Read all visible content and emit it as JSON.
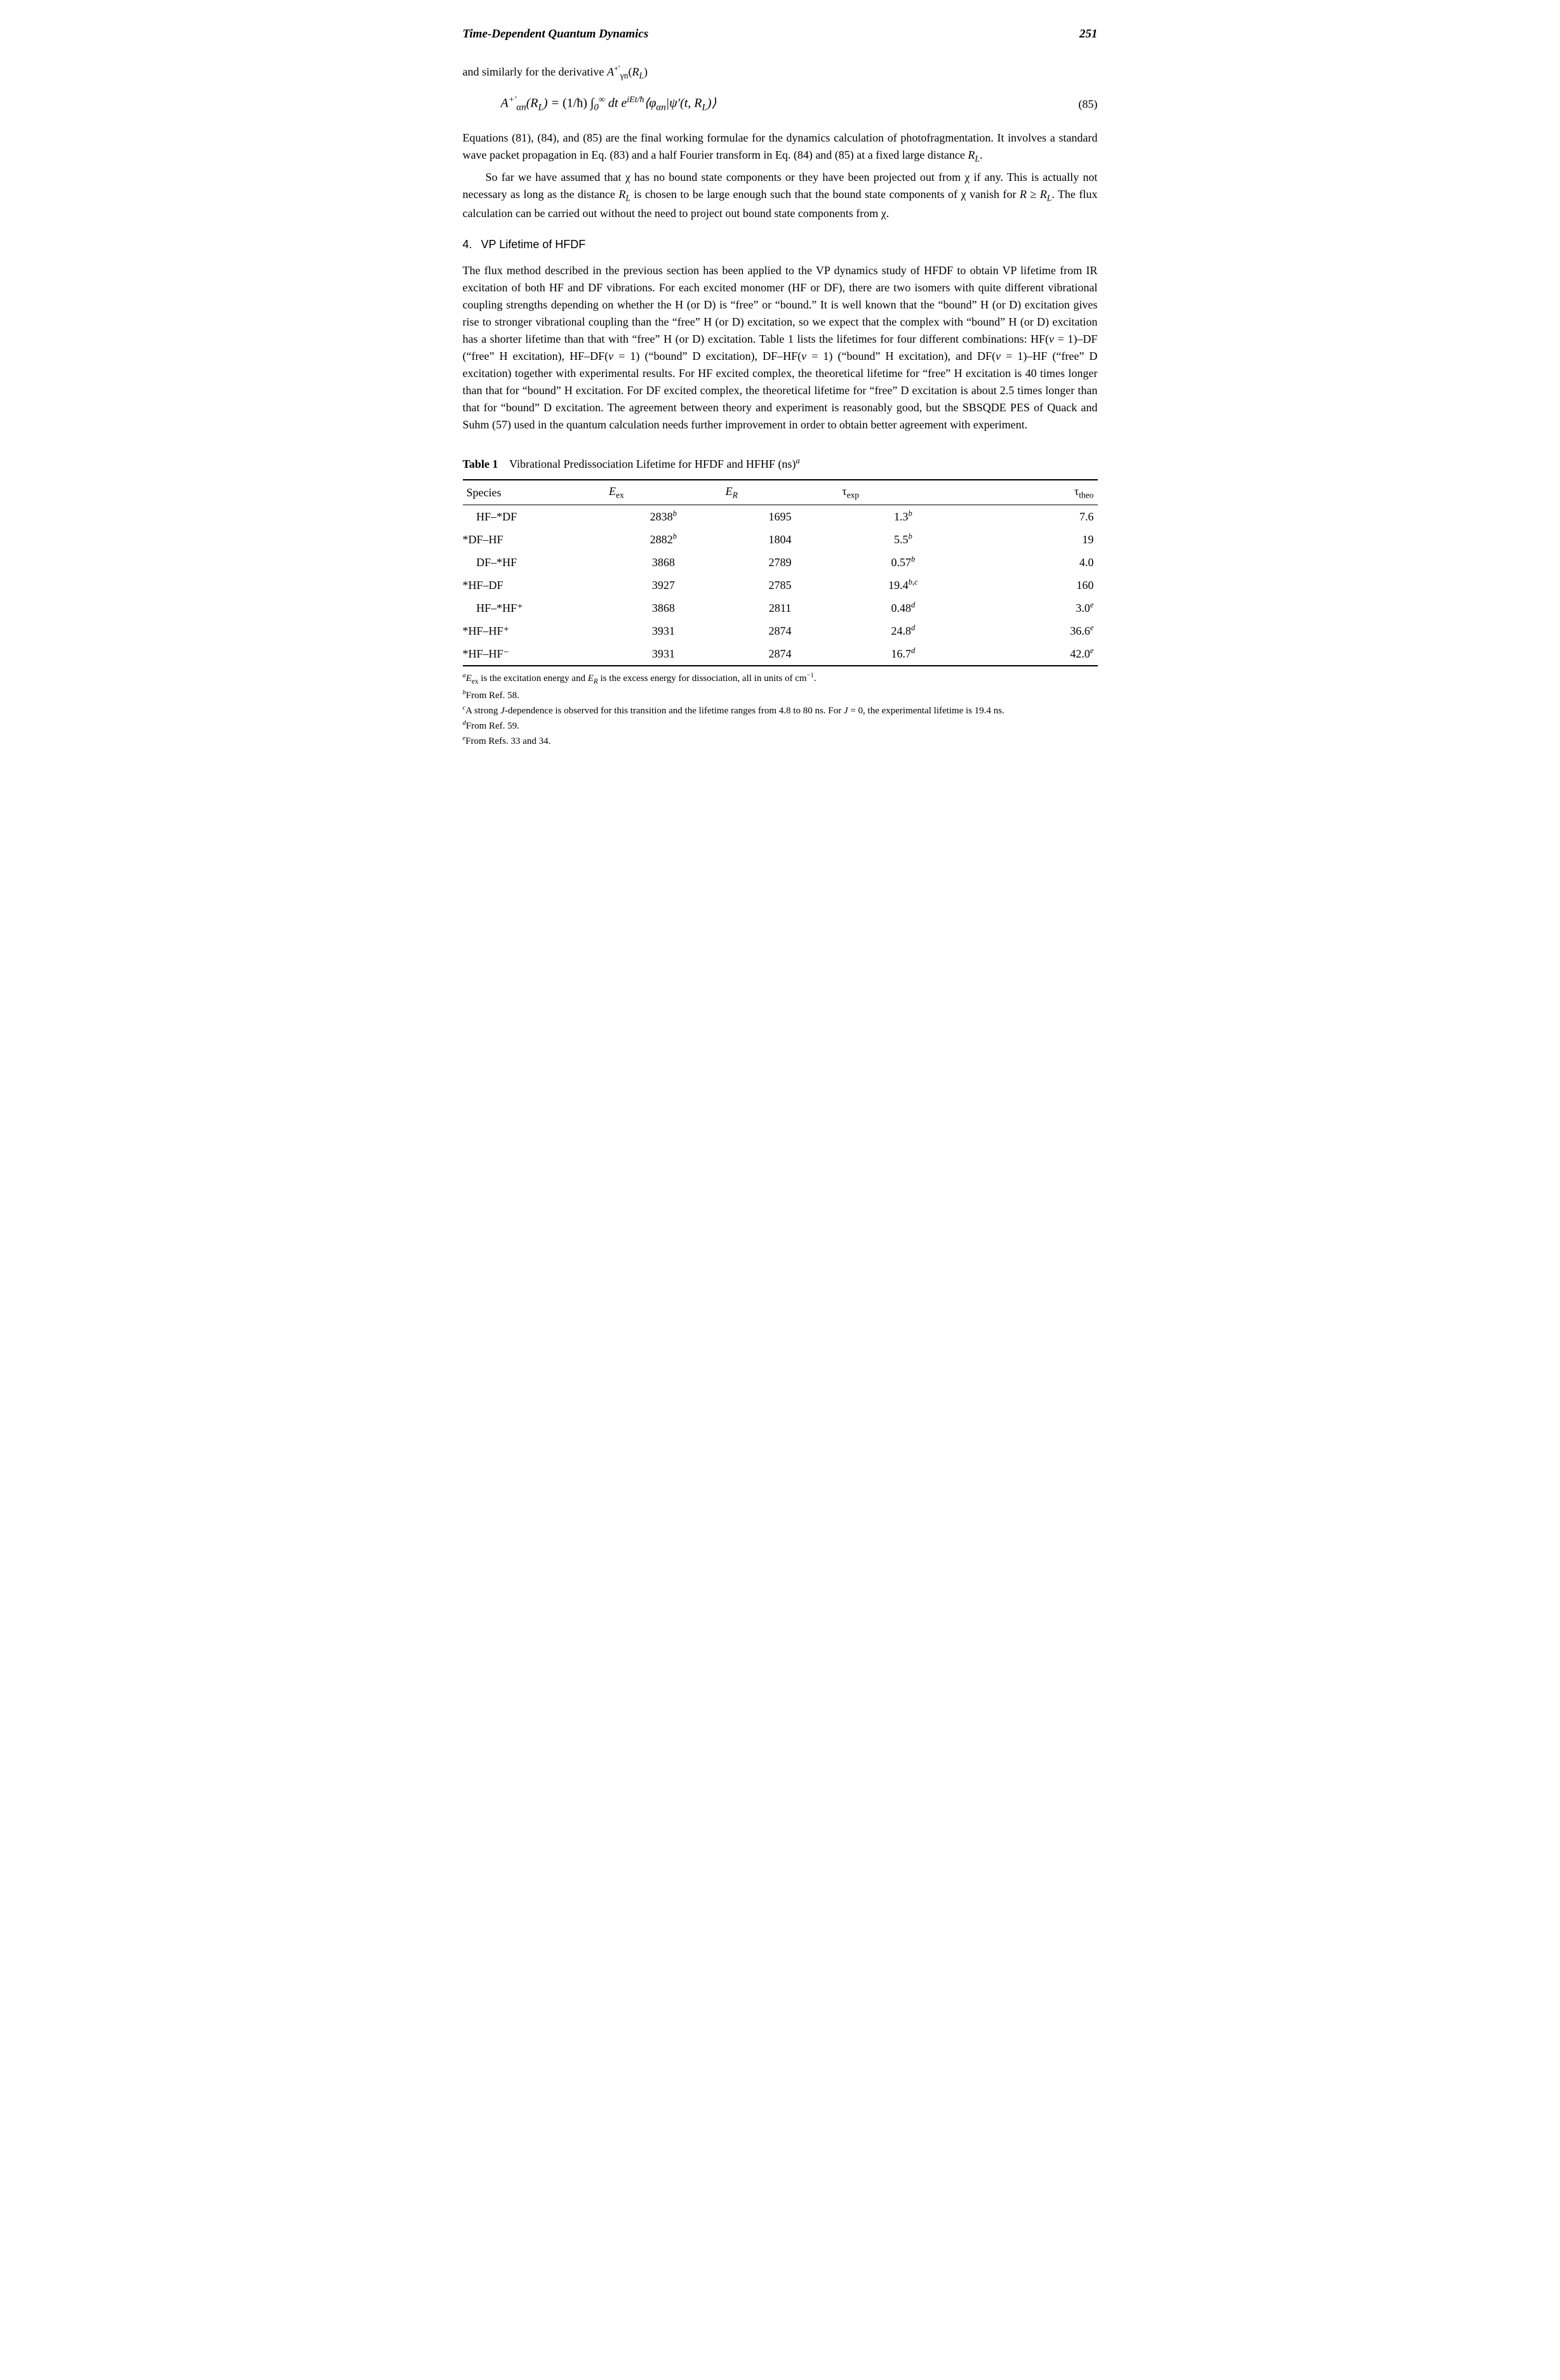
{
  "header": {
    "book_title": "Time-Dependent Quantum Dynamics",
    "page_number": "251"
  },
  "lead_text": "and similarly for the derivative A⁺′γn(R_L)",
  "equation": {
    "body": "A⁺′αn(R_L) = (1/ħ) ∫₀^∞ dt e^{iEt/ħ} ⟨φ_{αn}|ψ′(t, R_L)⟩",
    "number": "(85)"
  },
  "para1": "Equations (81), (84), and (85) are the final working formulae for the dynamics calculation of photofragmentation. It involves a standard wave packet propagation in Eq. (83) and a half Fourier transform in Eq. (84) and (85) at a fixed large distance R_L.",
  "para2": "So far we have assumed that χ has no bound state components or they have been projected out from χ if any. This is actually not necessary as long as the distance R_L is chosen to be large enough such that the bound state components of χ vanish for R ≥ R_L. The flux calculation can be carried out without the need to project out bound state components from χ.",
  "section": {
    "num": "4.",
    "label": "VP Lifetime of HFDF"
  },
  "para3": "The flux method described in the previous section has been applied to the VP dynamics study of HFDF to obtain VP lifetime from IR excitation of both HF and DF vibrations. For each excited monomer (HF or DF), there are two isomers with quite different vibrational coupling strengths depending on whether the H (or D) is “free” or “bound.” It is well known that the “bound” H (or D) excitation gives rise to stronger vibrational coupling than the “free” H (or D) excitation, so we expect that the complex with “bound” H (or D) excitation has a shorter lifetime than that with “free” H (or D) excitation. Table 1 lists the lifetimes for four different combinations: HF(v = 1)–DF (“free” H excitation), HF–DF(v = 1) (“bound” D excitation), DF–HF(v = 1) (“bound” H excitation), and DF(v = 1)–HF (“free” D excitation) together with experimental results. For HF excited complex, the theoretical lifetime for “free” H excitation is 40 times longer than that for “bound” H excitation. For DF excited complex, the theoretical lifetime for “free” D excitation is about 2.5 times longer than that for “bound” D excitation. The agreement between theory and experiment is reasonably good, but the SBSQDE PES of Quack and Suhm (57) used in the quantum calculation needs further improvement in order to obtain better agreement with experiment.",
  "table": {
    "caption_label": "Table 1",
    "caption_text": "Vibrational Predissociation Lifetime for HFDF and HFHF (ns)ᵃ",
    "columns": {
      "species": "Species",
      "eex": "Eₑₓ",
      "er": "E_R",
      "texp": "τₑₓₚ",
      "ttheo": "τₜₕₑₒ"
    },
    "rows": [
      {
        "species": "HF–*DF",
        "species_indent": true,
        "eex": "2838",
        "eex_sup": "b",
        "er": "1695",
        "texp": "1.3",
        "texp_sup": "b",
        "ttheo": "7.6",
        "ttheo_sup": ""
      },
      {
        "species": "*DF–HF",
        "species_indent": false,
        "eex": "2882",
        "eex_sup": "b",
        "er": "1804",
        "texp": "5.5",
        "texp_sup": "b",
        "ttheo": "19",
        "ttheo_sup": ""
      },
      {
        "species": "DF–*HF",
        "species_indent": true,
        "eex": "3868",
        "eex_sup": "",
        "er": "2789",
        "texp": "0.57",
        "texp_sup": "b",
        "ttheo": "4.0",
        "ttheo_sup": ""
      },
      {
        "species": "*HF–DF",
        "species_indent": false,
        "eex": "3927",
        "eex_sup": "",
        "er": "2785",
        "texp": "19.4",
        "texp_sup": "b,c",
        "ttheo": "160",
        "ttheo_sup": ""
      },
      {
        "species": "HF–*HF⁺",
        "species_indent": true,
        "eex": "3868",
        "eex_sup": "",
        "er": "2811",
        "texp": "0.48",
        "texp_sup": "d",
        "ttheo": "3.0",
        "ttheo_sup": "e"
      },
      {
        "species": "*HF–HF⁺",
        "species_indent": false,
        "eex": "3931",
        "eex_sup": "",
        "er": "2874",
        "texp": "24.8",
        "texp_sup": "d",
        "ttheo": "36.6",
        "ttheo_sup": "e"
      },
      {
        "species": "*HF–HF⁻",
        "species_indent": false,
        "eex": "3931",
        "eex_sup": "",
        "er": "2874",
        "texp": "16.7",
        "texp_sup": "d",
        "ttheo": "42.0",
        "ttheo_sup": "e"
      }
    ]
  },
  "footnotes": {
    "a": "ᵃEₑₓ is the excitation energy and E_R is the excess energy for dissociation, all in units of cm⁻¹.",
    "b": "ᵇFrom Ref. 58.",
    "c": "ᶜA strong J-dependence is observed for this transition and the lifetime ranges from 4.8 to 80 ns. For J = 0, the experimental lifetime is 19.4 ns.",
    "d": "ᵈFrom Ref. 59.",
    "e": "ᵉFrom Refs. 33 and 34."
  }
}
